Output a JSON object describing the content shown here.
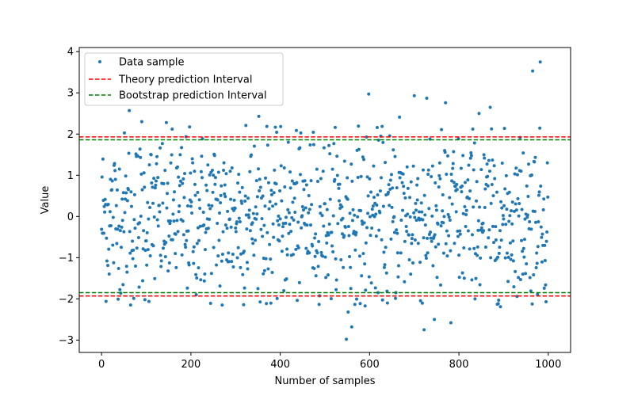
{
  "chart_data": {
    "type": "scatter",
    "title": "",
    "xlabel": "Number of samples",
    "ylabel": "Value",
    "xlim": [
      -50,
      1050
    ],
    "ylim": [
      -3.3,
      4.1
    ],
    "xticks": [
      0,
      200,
      400,
      600,
      800,
      1000
    ],
    "xtick_labels": [
      "0",
      "200",
      "400",
      "600",
      "800",
      "1000"
    ],
    "yticks": [
      -3,
      -2,
      -1,
      0,
      1,
      2,
      3,
      4
    ],
    "ytick_labels": [
      "−3",
      "−2",
      "−1",
      "0",
      "1",
      "2",
      "3",
      "4"
    ],
    "grid": false,
    "legend_position": "upper-left",
    "series": [
      {
        "name": "Data sample",
        "kind": "scatter",
        "color": "#1f77b4",
        "n_points": 1000,
        "x_range": [
          0,
          999
        ],
        "distribution": "standard normal",
        "notable_points": [
          {
            "x": 62,
            "y": 2.57
          },
          {
            "x": 90,
            "y": 2.3
          },
          {
            "x": 145,
            "y": 2.28
          },
          {
            "x": 323,
            "y": 2.21
          },
          {
            "x": 352,
            "y": 2.43
          },
          {
            "x": 598,
            "y": 2.97
          },
          {
            "x": 667,
            "y": 2.41
          },
          {
            "x": 700,
            "y": 2.93
          },
          {
            "x": 728,
            "y": 2.87
          },
          {
            "x": 770,
            "y": 2.76
          },
          {
            "x": 845,
            "y": 2.5
          },
          {
            "x": 870,
            "y": 2.65
          },
          {
            "x": 965,
            "y": 3.53
          },
          {
            "x": 982,
            "y": 3.75
          },
          {
            "x": 548,
            "y": -2.98
          },
          {
            "x": 560,
            "y": -2.68
          },
          {
            "x": 552,
            "y": -2.32
          },
          {
            "x": 722,
            "y": -2.75
          },
          {
            "x": 745,
            "y": -2.5
          },
          {
            "x": 782,
            "y": -2.58
          },
          {
            "x": 893,
            "y": -2.19
          },
          {
            "x": 65,
            "y": -2.15
          },
          {
            "x": 270,
            "y": -2.15
          },
          {
            "x": 590,
            "y": -2.17
          },
          {
            "x": 640,
            "y": -2.1
          }
        ]
      },
      {
        "name": "Theory prediction Interval",
        "kind": "hline-pair",
        "color": "#ff0000",
        "style": "dashed",
        "y": [
          -1.93,
          1.93
        ]
      },
      {
        "name": "Bootstrap prediction Interval",
        "kind": "hline-pair",
        "color": "#008000",
        "style": "dashed",
        "y": [
          -1.85,
          1.86
        ]
      }
    ]
  }
}
